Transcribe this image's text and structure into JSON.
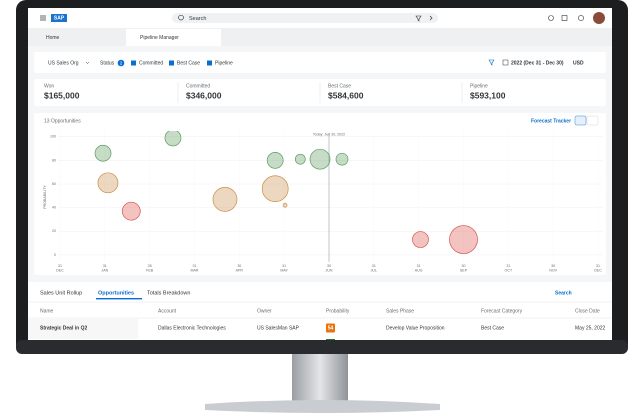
{
  "header": {
    "logo": "SAP",
    "search": "Search"
  },
  "tabs": [
    "Home",
    "Pipeline Manager"
  ],
  "filters": {
    "sales_org": "US Sales Org",
    "status_label": "Status",
    "status_count": "2",
    "checkboxes": [
      "Committed",
      "Best Case",
      "Pipeline"
    ],
    "period": "2022 (Dec 31 - Dec 30)",
    "currency": "USD"
  },
  "kpis": [
    {
      "label": "Won",
      "value": "$165,000"
    },
    {
      "label": "Committed",
      "value": "$346,000"
    },
    {
      "label": "Best Case",
      "value": "$584,600"
    },
    {
      "label": "Pipeline",
      "value": "$593,100"
    }
  ],
  "chart_data": {
    "type": "bubble",
    "title": "13 Opportunities",
    "toggle": "Forecast Tracker",
    "annotation": "Today: Jun 30, 2022",
    "today": 6,
    "y_label": "PROBABILITY",
    "x": [
      0.96,
      2.52,
      1.07,
      1.59,
      3.68,
      4.8,
      5.02,
      4.8,
      5.36,
      5.8,
      6.29,
      8.04,
      9.0
    ],
    "y": [
      86,
      99,
      61,
      37,
      47,
      56,
      42,
      80,
      81,
      81,
      81,
      13,
      13
    ],
    "sizes": [
      64,
      64,
      100,
      81,
      144,
      169,
      4,
      64,
      25,
      100,
      36,
      64,
      196
    ],
    "colors": [
      "#5b9a5f",
      "#5b9a5f",
      "#c98e4a",
      "#d9534c",
      "#c98e4a",
      "#c98e4a",
      "#c98e4a",
      "#5b9a5f",
      "#5b9a5f",
      "#5b9a5f",
      "#5b9a5f",
      "#d9534c",
      "#d9534c"
    ],
    "xlim": [
      -0.1,
      12.1
    ],
    "ylim": [
      -6,
      104
    ],
    "xticks": [
      {
        "value": 0,
        "label": "31 DEC"
      },
      {
        "value": 1,
        "label": "31 JAN"
      },
      {
        "value": 2,
        "label": "28 FEB"
      },
      {
        "value": 3,
        "label": "31 MAR"
      },
      {
        "value": 4,
        "label": "30 APR"
      },
      {
        "value": 5,
        "label": "31 MAY"
      },
      {
        "value": 6,
        "label": "30 JUN"
      },
      {
        "value": 7,
        "label": "31 JUL"
      },
      {
        "value": 8,
        "label": "31 AUG"
      },
      {
        "value": 9,
        "label": "30 SEP"
      },
      {
        "value": 10,
        "label": "31 OCT"
      },
      {
        "value": 11,
        "label": "30 NOV"
      },
      {
        "value": 12,
        "label": "31 DEC"
      }
    ],
    "yticks": [
      0,
      20,
      40,
      60,
      80,
      100
    ],
    "grid": true
  },
  "table": {
    "tabs": [
      "Sales Unit Rollup",
      "Opportunities",
      "Totals Breakdown"
    ],
    "search": "Search",
    "columns": [
      "Name",
      "Account",
      "Owner",
      "Probability",
      "Sales Phase",
      "Forecast Category",
      "Close Date"
    ],
    "rows": [
      [
        "Strategic Deal in Q2",
        "Dallas Electronic Technologies",
        "US SalesMan SAP",
        "54",
        "Develop Value Proposition",
        "Best Case",
        "May 25, 2022"
      ]
    ]
  }
}
